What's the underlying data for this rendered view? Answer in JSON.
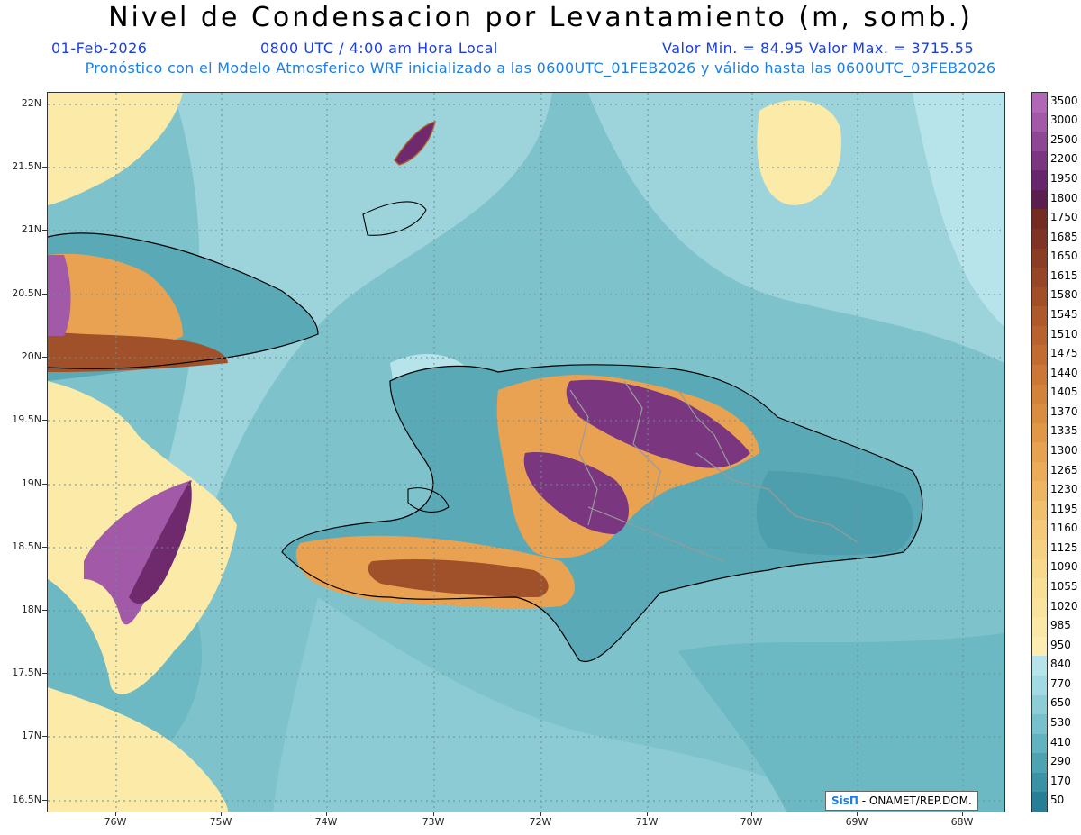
{
  "header": {
    "title": "Nivel de Condensacion por Levantamiento (m, somb.)",
    "date": "01-Feb-2026",
    "time": "0800 UTC / 4:00 am Hora Local",
    "min_max": "Valor Min. = 84.95  Valor Max. = 3715.55",
    "subtitle": "Pronóstico con el Modelo Atmosferico WRF inicializado a las 0600UTC_01FEB2026 y válido hasta las  0600UTC_03FEB2026"
  },
  "axes": {
    "lat_labels": [
      "22N",
      "21.5N",
      "21N",
      "20.5N",
      "20N",
      "19.5N",
      "19N",
      "18.5N",
      "18N",
      "17.5N",
      "17N",
      "16.5N"
    ],
    "lon_labels": [
      "76W",
      "75W",
      "74W",
      "73W",
      "72W",
      "71W",
      "70W",
      "69W",
      "68W"
    ]
  },
  "legend": {
    "levels": [
      "3500",
      "3000",
      "2500",
      "2200",
      "1950",
      "1800",
      "1750",
      "1685",
      "1650",
      "1615",
      "1580",
      "1545",
      "1510",
      "1475",
      "1440",
      "1405",
      "1370",
      "1335",
      "1300",
      "1265",
      "1230",
      "1195",
      "1160",
      "1125",
      "1090",
      "1055",
      "1020",
      "985",
      "950",
      "840",
      "770",
      "650",
      "530",
      "410",
      "290",
      "170",
      "50"
    ],
    "colors": [
      "#b068b6",
      "#a25aa8",
      "#8e4893",
      "#7a3780",
      "#66276c",
      "#5a1f4d",
      "#722c22",
      "#7e3424",
      "#8a3d25",
      "#964627",
      "#a24f29",
      "#ae582c",
      "#b8622f",
      "#c26c32",
      "#cb7736",
      "#d3823a",
      "#da8d40",
      "#e09847",
      "#e5a24f",
      "#eaac58",
      "#eeb662",
      "#f1c06c",
      "#f4c977",
      "#f6d181",
      "#f8d88b",
      "#f9de95",
      "#fae39f",
      "#fbe8a8",
      "#fcedb2",
      "#b6e4ea",
      "#a2d9e2",
      "#8dcdd7",
      "#77c0cc",
      "#62b2c0",
      "#4ea3b3",
      "#3a93a5",
      "#267f94"
    ]
  },
  "map": {
    "icon": "map-contour-icon",
    "colors": {
      "ocean_base": "#7ec3cb",
      "ocean_light": "#9dd4dc",
      "ocean_pale": "#b6e4ea",
      "ocean_dark": "#5fb1bd",
      "yellow": "#fbeaa8",
      "orange": "#e9a152",
      "brown": "#b5622d",
      "dark_brown": "#6e2a22",
      "purple": "#7a3780",
      "violet": "#a25aa8",
      "land_teal": "#5aa9b6"
    }
  },
  "credit": {
    "brand": "SisΠ",
    "org": " -  ONAMET/REP.DOM."
  }
}
